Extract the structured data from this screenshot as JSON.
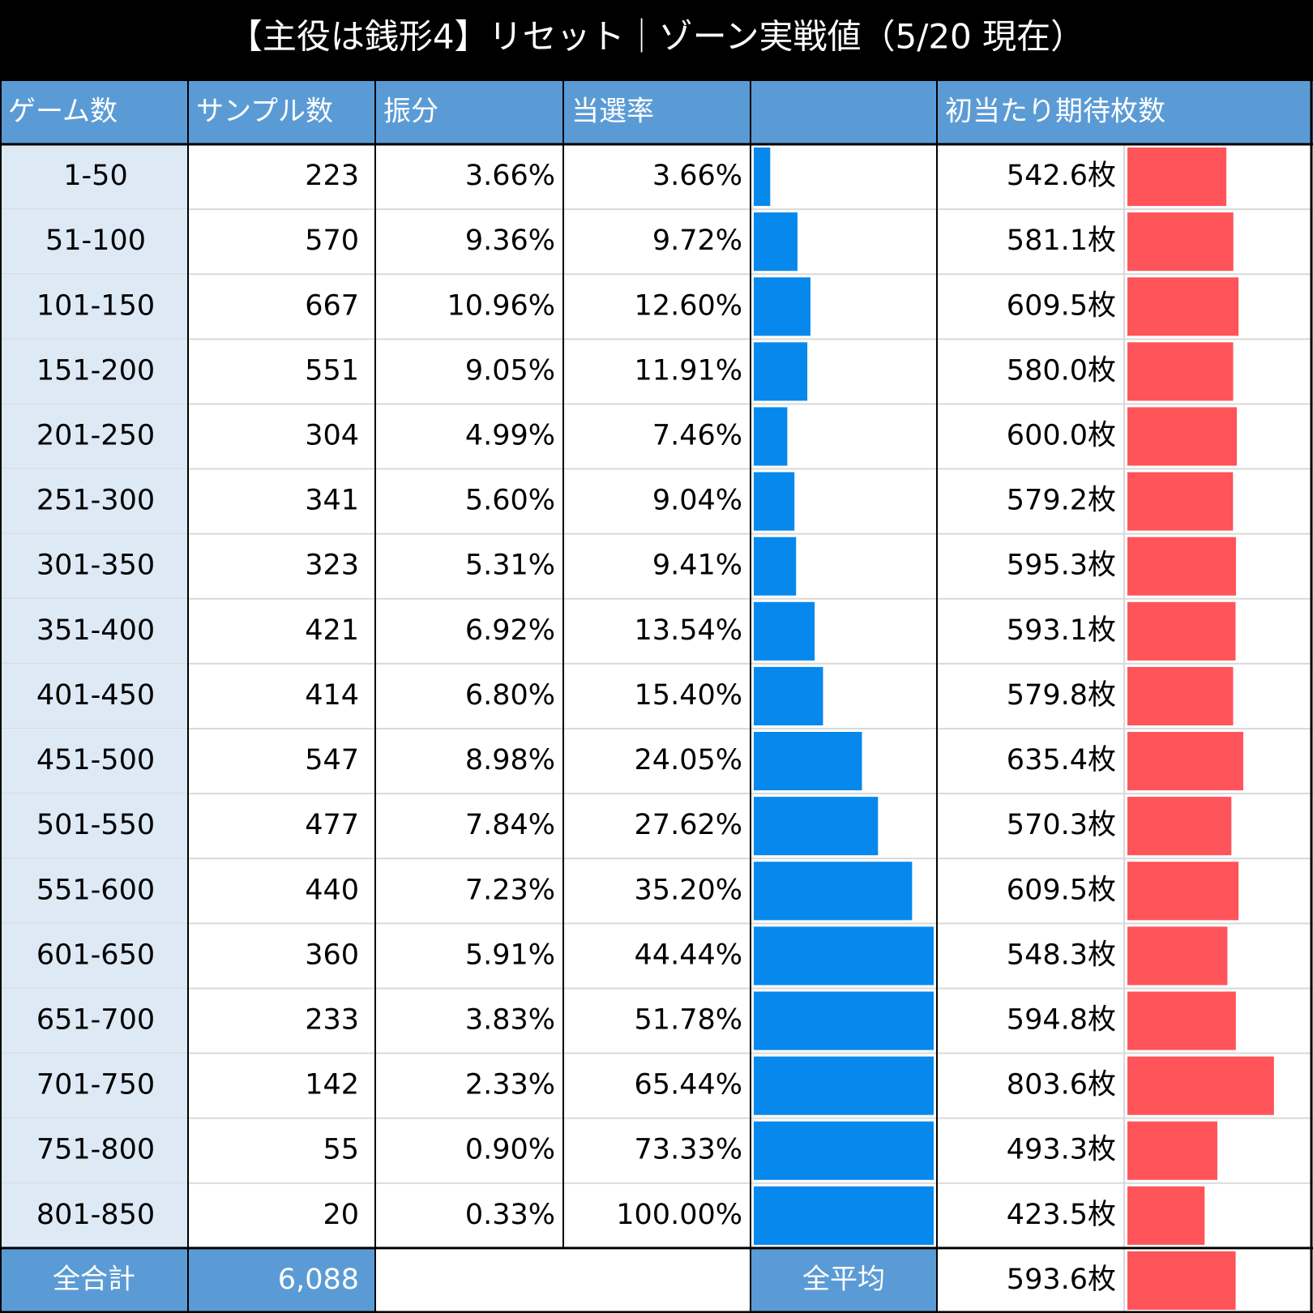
{
  "title": "【主役は銭形4】リセット｜ゾーン実戦値（5/20 現在）",
  "table": {
    "columns": [
      "ゲーム数",
      "サンプル数",
      "振分",
      "当選率",
      "初当たり期待枚数"
    ],
    "rate_bar_range": [
      0,
      40
    ],
    "coin_bar_range": [
      0,
      1000
    ],
    "rows": [
      {
        "zone": "1-50",
        "samples": "223",
        "share": "3.66%",
        "rate": {
          "value": 3.66,
          "label": "3.66%"
        },
        "coins": {
          "value": 542.6,
          "label": "542.6枚"
        }
      },
      {
        "zone": "51-100",
        "samples": "570",
        "share": "9.36%",
        "rate": {
          "value": 9.72,
          "label": "9.72%"
        },
        "coins": {
          "value": 581.1,
          "label": "581.1枚"
        }
      },
      {
        "zone": "101-150",
        "samples": "667",
        "share": "10.96%",
        "rate": {
          "value": 12.6,
          "label": "12.60%"
        },
        "coins": {
          "value": 609.5,
          "label": "609.5枚"
        }
      },
      {
        "zone": "151-200",
        "samples": "551",
        "share": "9.05%",
        "rate": {
          "value": 11.91,
          "label": "11.91%"
        },
        "coins": {
          "value": 580.0,
          "label": "580.0枚"
        }
      },
      {
        "zone": "201-250",
        "samples": "304",
        "share": "4.99%",
        "rate": {
          "value": 7.46,
          "label": "7.46%"
        },
        "coins": {
          "value": 600.0,
          "label": "600.0枚"
        }
      },
      {
        "zone": "251-300",
        "samples": "341",
        "share": "5.60%",
        "rate": {
          "value": 9.04,
          "label": "9.04%"
        },
        "coins": {
          "value": 579.2,
          "label": "579.2枚"
        }
      },
      {
        "zone": "301-350",
        "samples": "323",
        "share": "5.31%",
        "rate": {
          "value": 9.41,
          "label": "9.41%"
        },
        "coins": {
          "value": 595.3,
          "label": "595.3枚"
        }
      },
      {
        "zone": "351-400",
        "samples": "421",
        "share": "6.92%",
        "rate": {
          "value": 13.54,
          "label": "13.54%"
        },
        "coins": {
          "value": 593.1,
          "label": "593.1枚"
        }
      },
      {
        "zone": "401-450",
        "samples": "414",
        "share": "6.80%",
        "rate": {
          "value": 15.4,
          "label": "15.40%"
        },
        "coins": {
          "value": 579.8,
          "label": "579.8枚"
        }
      },
      {
        "zone": "451-500",
        "samples": "547",
        "share": "8.98%",
        "rate": {
          "value": 24.05,
          "label": "24.05%"
        },
        "coins": {
          "value": 635.4,
          "label": "635.4枚"
        }
      },
      {
        "zone": "501-550",
        "samples": "477",
        "share": "7.84%",
        "rate": {
          "value": 27.62,
          "label": "27.62%"
        },
        "coins": {
          "value": 570.3,
          "label": "570.3枚"
        }
      },
      {
        "zone": "551-600",
        "samples": "440",
        "share": "7.23%",
        "rate": {
          "value": 35.2,
          "label": "35.20%"
        },
        "coins": {
          "value": 609.5,
          "label": "609.5枚"
        }
      },
      {
        "zone": "601-650",
        "samples": "360",
        "share": "5.91%",
        "rate": {
          "value": 44.44,
          "label": "44.44%"
        },
        "coins": {
          "value": 548.3,
          "label": "548.3枚"
        }
      },
      {
        "zone": "651-700",
        "samples": "233",
        "share": "3.83%",
        "rate": {
          "value": 51.78,
          "label": "51.78%"
        },
        "coins": {
          "value": 594.8,
          "label": "594.8枚"
        }
      },
      {
        "zone": "701-750",
        "samples": "142",
        "share": "2.33%",
        "rate": {
          "value": 65.44,
          "label": "65.44%"
        },
        "coins": {
          "value": 803.6,
          "label": "803.6枚"
        }
      },
      {
        "zone": "751-800",
        "samples": "55",
        "share": "0.90%",
        "rate": {
          "value": 73.33,
          "label": "73.33%"
        },
        "coins": {
          "value": 493.3,
          "label": "493.3枚"
        }
      },
      {
        "zone": "801-850",
        "samples": "20",
        "share": "0.33%",
        "rate": {
          "value": 100.0,
          "label": "100.00%"
        },
        "coins": {
          "value": 423.5,
          "label": "423.5枚"
        }
      }
    ],
    "footer": {
      "total_label": "全合計",
      "total_samples": "6,088",
      "average_label": "全平均",
      "average": {
        "value": 593.6,
        "label": "593.6枚"
      }
    }
  }
}
